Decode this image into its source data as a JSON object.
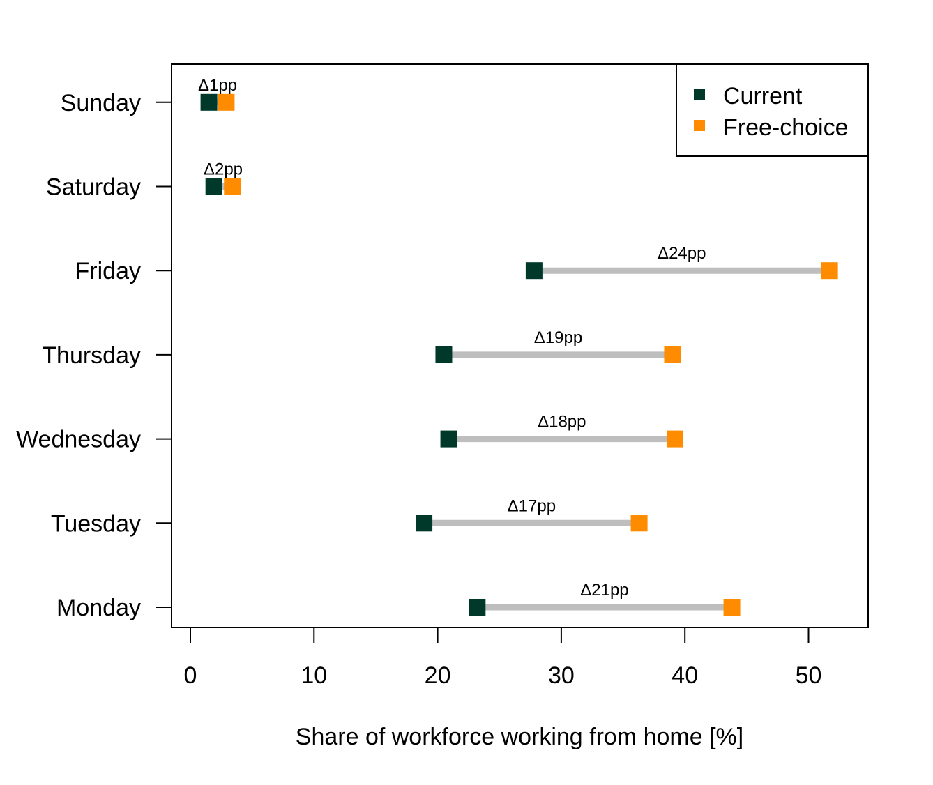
{
  "chart_data": {
    "type": "dumbbell",
    "xlabel": "Share of workforce working from home [%]",
    "ylabel": "",
    "xlim": [
      0,
      55
    ],
    "xticks": [
      0,
      10,
      20,
      30,
      40,
      50
    ],
    "grid": false,
    "legend_position": "top-right",
    "categories": [
      "Monday",
      "Tuesday",
      "Wednesday",
      "Thursday",
      "Friday",
      "Saturday",
      "Sunday"
    ],
    "series": [
      {
        "name": "Current",
        "color": "#00382a",
        "values": [
          23.2,
          18.9,
          20.9,
          20.5,
          27.8,
          1.9,
          1.5
        ]
      },
      {
        "name": "Free-choice",
        "color": "#ff8b00",
        "values": [
          43.8,
          36.3,
          39.2,
          39.0,
          51.7,
          3.4,
          2.9
        ]
      }
    ],
    "delta_labels": [
      "Δ21pp",
      "Δ17pp",
      "Δ18pp",
      "Δ19pp",
      "Δ24pp",
      "Δ2pp",
      "Δ1pp"
    ],
    "connector_color": "#bebebe"
  }
}
